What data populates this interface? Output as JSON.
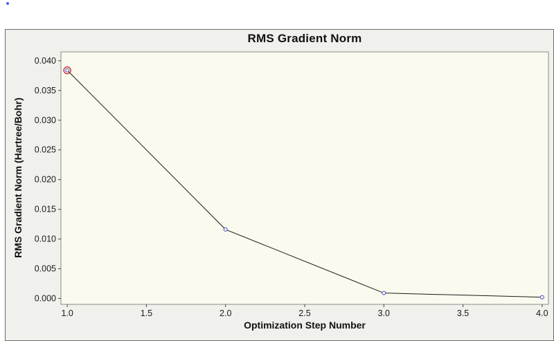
{
  "window": {
    "background_color": "#ffffff",
    "panel_background_color": "#f0f0ec",
    "panel_border_color": "#6a6a6a"
  },
  "chart_data": {
    "type": "line",
    "title": "RMS Gradient Norm",
    "xlabel": "Optimization Step Number",
    "ylabel": "RMS Gradient Norm (Hartree/Bohr)",
    "x": [
      1.0,
      2.0,
      3.0,
      4.0
    ],
    "y": [
      0.0384,
      0.0116,
      0.0009,
      0.0002
    ],
    "xlim": [
      0.96,
      4.04
    ],
    "ylim": [
      -0.001,
      0.0415
    ],
    "x_tick_values": [
      1.0,
      1.5,
      2.0,
      2.5,
      3.0,
      3.5,
      4.0
    ],
    "x_tick_labels": [
      "1.0",
      "1.5",
      "2.0",
      "2.5",
      "3.0",
      "3.5",
      "4.0"
    ],
    "y_tick_values": [
      0.0,
      0.005,
      0.01,
      0.015,
      0.02,
      0.025,
      0.03,
      0.035,
      0.04
    ],
    "y_tick_labels": [
      "0.000",
      "0.005",
      "0.010",
      "0.015",
      "0.020",
      "0.025",
      "0.030",
      "0.035",
      "0.040"
    ],
    "grid": false,
    "legend": false,
    "selected_point_index": 0,
    "colors": {
      "line": "#1a1a1a",
      "marker_stroke": "#4444cc",
      "marker_fill": "#fafaee",
      "selected_ring": "#cc2222",
      "plot_background": "#fafaee",
      "plot_border": "#8a8a8a",
      "tick": "#444444",
      "tick_label": "#1a1a1a"
    }
  }
}
